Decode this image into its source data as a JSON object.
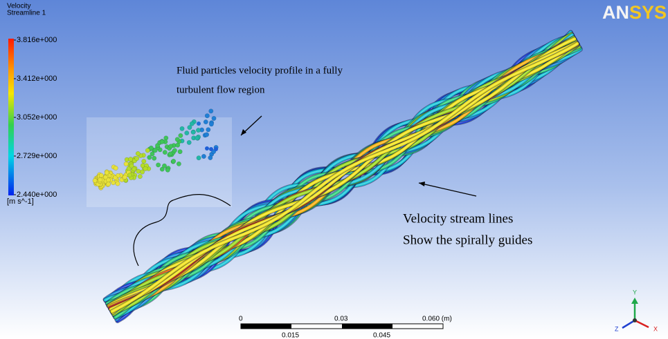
{
  "logo": "ANSYS",
  "legend": {
    "title": "Velocity",
    "subtitle": "Streamline 1",
    "labels": [
      "3.816e+000",
      "3.412e+000",
      "3.052e+000",
      "2.729e+000",
      "2.440e+000"
    ],
    "unit": "[m s^-1]"
  },
  "annotations": {
    "particles": [
      "Fluid particles velocity profile in a fully",
      "turbulent flow region"
    ],
    "streamlines": [
      "Velocity stream lines",
      "Show the spirally guides"
    ]
  },
  "scale_bar": {
    "top_labels": [
      "0",
      "0.03",
      "0.060 (m)"
    ],
    "bottom_labels": [
      "0.015",
      "0.045"
    ]
  },
  "triad": {
    "y": "Y",
    "z": "Z",
    "x": "X"
  }
}
